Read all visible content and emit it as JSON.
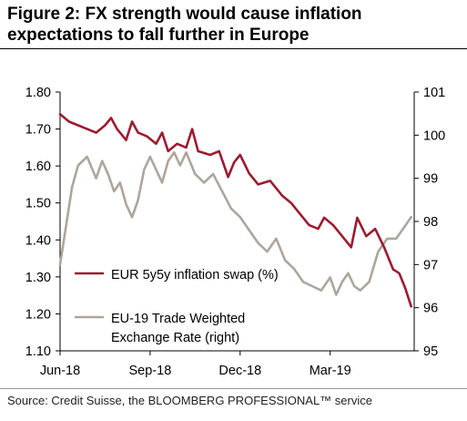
{
  "figure": {
    "title_line1": "Figure 2: FX strength would cause inflation",
    "title_line2": "expectations to fall further in Europe",
    "source": "Source: Credit Suisse, the BLOOMBERG PROFESSIONAL™ service"
  },
  "chart_data": {
    "type": "line",
    "title": "Figure 2: FX strength would cause inflation expectations to fall further in Europe",
    "x_ticks": [
      "Jun-18",
      "Sep-18",
      "Dec-18",
      "Mar-19"
    ],
    "x_tick_positions": [
      0,
      3,
      6,
      9
    ],
    "xlim": [
      0,
      11.8
    ],
    "y_left": {
      "lim": [
        1.1,
        1.8
      ],
      "ticks": [
        "1.10",
        "1.20",
        "1.30",
        "1.40",
        "1.50",
        "1.60",
        "1.70",
        "1.80"
      ]
    },
    "y_right": {
      "lim": [
        95,
        101
      ],
      "ticks": [
        "95",
        "96",
        "97",
        "98",
        "99",
        "100",
        "101"
      ]
    },
    "grid": false,
    "legend_placement": "bottom-left inside plot",
    "series": [
      {
        "name": "EUR 5y5y inflation swap (%)",
        "axis": "left",
        "color": "#9b1b30",
        "x": [
          0,
          0.3,
          0.6,
          0.9,
          1.2,
          1.5,
          1.7,
          1.9,
          2.2,
          2.4,
          2.6,
          2.9,
          3.2,
          3.4,
          3.6,
          3.9,
          4.2,
          4.4,
          4.6,
          5.0,
          5.3,
          5.6,
          5.8,
          6.0,
          6.3,
          6.6,
          7.0,
          7.4,
          7.7,
          8.0,
          8.3,
          8.6,
          8.8,
          9.1,
          9.4,
          9.7,
          9.9,
          10.2,
          10.5,
          10.8,
          11.1,
          11.3,
          11.5,
          11.7
        ],
        "values": [
          1.74,
          1.72,
          1.71,
          1.7,
          1.69,
          1.71,
          1.73,
          1.7,
          1.67,
          1.72,
          1.69,
          1.68,
          1.66,
          1.69,
          1.64,
          1.66,
          1.65,
          1.7,
          1.64,
          1.63,
          1.64,
          1.57,
          1.61,
          1.63,
          1.58,
          1.55,
          1.56,
          1.52,
          1.5,
          1.47,
          1.44,
          1.43,
          1.46,
          1.44,
          1.41,
          1.38,
          1.46,
          1.41,
          1.43,
          1.38,
          1.32,
          1.31,
          1.27,
          1.22
        ]
      },
      {
        "name": "EU-19 Trade Weighted Exchange Rate (right)",
        "axis": "right",
        "color": "#aea59c",
        "x": [
          0,
          0.2,
          0.4,
          0.6,
          0.9,
          1.2,
          1.4,
          1.6,
          1.8,
          2.0,
          2.2,
          2.4,
          2.6,
          2.8,
          3.0,
          3.2,
          3.4,
          3.6,
          3.8,
          4.0,
          4.2,
          4.5,
          4.8,
          5.1,
          5.4,
          5.7,
          6.0,
          6.3,
          6.6,
          6.9,
          7.2,
          7.5,
          7.8,
          8.1,
          8.4,
          8.7,
          9.0,
          9.2,
          9.4,
          9.6,
          9.8,
          10.0,
          10.3,
          10.6,
          10.9,
          11.2,
          11.5,
          11.7
        ],
        "values": [
          97.0,
          97.9,
          98.8,
          99.3,
          99.5,
          99.0,
          99.4,
          99.1,
          98.7,
          98.9,
          98.4,
          98.1,
          98.5,
          99.2,
          99.5,
          99.2,
          98.9,
          99.4,
          99.6,
          99.3,
          99.6,
          99.1,
          98.9,
          99.1,
          98.7,
          98.3,
          98.1,
          97.8,
          97.5,
          97.3,
          97.6,
          97.1,
          96.9,
          96.6,
          96.5,
          96.4,
          96.7,
          96.3,
          96.6,
          96.8,
          96.5,
          96.4,
          96.6,
          97.3,
          97.6,
          97.6,
          97.9,
          98.1
        ]
      }
    ]
  }
}
